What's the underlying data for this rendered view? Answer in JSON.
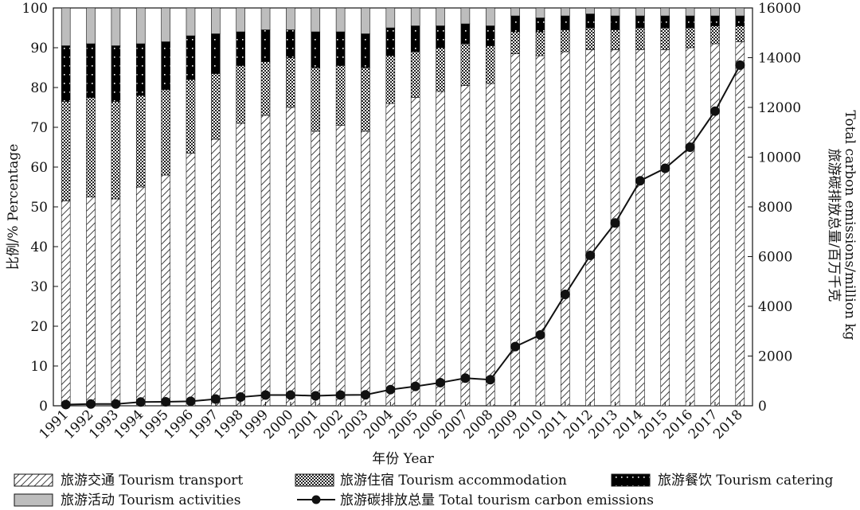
{
  "chart_data": {
    "type": "bar",
    "stacked": true,
    "categories": [
      "1991",
      "1992",
      "1993",
      "1994",
      "1995",
      "1996",
      "1997",
      "1998",
      "1999",
      "2000",
      "2001",
      "2002",
      "2003",
      "2004",
      "2005",
      "2006",
      "2007",
      "2008",
      "2009",
      "2010",
      "2011",
      "2012",
      "2013",
      "2014",
      "2015",
      "2016",
      "2017",
      "2018"
    ],
    "series": [
      {
        "key": "transport",
        "name": "旅游交通 Tourism transport",
        "values": [
          51.5,
          52.5,
          52,
          55,
          58,
          63.5,
          67,
          71,
          73,
          75,
          69,
          70.5,
          69,
          76,
          77.5,
          79,
          80.5,
          81,
          88.5,
          88,
          89,
          89.5,
          89.5,
          89.5,
          89.5,
          90,
          91,
          91.5
        ]
      },
      {
        "key": "accommodation",
        "name": "旅游住宿 Tourism accommodation",
        "values": [
          25,
          25,
          24.5,
          23,
          21.5,
          18.5,
          16.5,
          14.5,
          13.5,
          12.5,
          16,
          15,
          16,
          12,
          11.5,
          11,
          10.5,
          9.5,
          5.5,
          6,
          5.5,
          5.5,
          5,
          5.5,
          5.5,
          5,
          4.5,
          4
        ]
      },
      {
        "key": "catering",
        "name": "旅游餐饮 Tourism catering",
        "values": [
          14,
          13.5,
          14,
          13,
          12,
          11,
          10,
          8.5,
          8,
          7,
          9,
          8.5,
          8.5,
          7,
          6.5,
          5.5,
          5,
          5,
          4,
          3.5,
          3.5,
          3.5,
          3.5,
          3,
          3,
          3,
          2.5,
          2.5
        ]
      },
      {
        "key": "activities",
        "name": "旅游活动 Tourism activities",
        "values": [
          9.5,
          9,
          9.5,
          9,
          8.5,
          7,
          6.5,
          6,
          5.5,
          5.5,
          6,
          6,
          6.5,
          5,
          4.5,
          4.5,
          4,
          4.5,
          2,
          2.5,
          2,
          1.5,
          2,
          2,
          2,
          2,
          2,
          2
        ]
      }
    ],
    "line": {
      "name": "旅游碳排放总量 Total tourism carbon emissions",
      "values": [
        50,
        70,
        70,
        150,
        160,
        180,
        270,
        350,
        430,
        430,
        400,
        430,
        440,
        650,
        780,
        930,
        1110,
        1050,
        2380,
        2850,
        4480,
        6050,
        7350,
        9050,
        9550,
        10400,
        11850,
        13700
      ]
    },
    "ylim_left": [
      0,
      100
    ],
    "yticks_left": [
      0,
      10,
      20,
      30,
      40,
      50,
      60,
      70,
      80,
      90,
      100
    ],
    "ylim_right": [
      0,
      16000
    ],
    "yticks_right": [
      0,
      2000,
      4000,
      6000,
      8000,
      10000,
      12000,
      14000,
      16000
    ],
    "xlabel": "年份 Year",
    "ylabel_left": "比例/% Percentage",
    "ylabel_right_cn": "旅游碳排放总量/百万千克",
    "ylabel_right_en": "Total carbon emissions/million kg",
    "legend_position": "bottom"
  }
}
